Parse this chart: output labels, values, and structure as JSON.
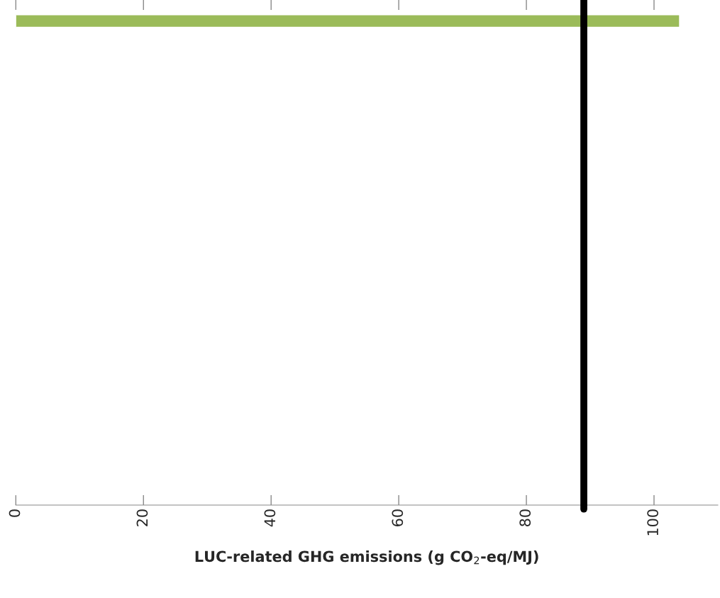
{
  "chart_data": {
    "type": "bar",
    "orientation": "horizontal",
    "xlabel": "LUC-related GHG emissions (g CO$_{2}$-eq/MJ)",
    "categories": [
      null,
      null,
      null,
      null,
      null,
      null,
      null,
      null,
      null,
      null,
      null,
      null
    ],
    "series": [
      {
        "color": "#9bbb59",
        "values": [
          104,
          null,
          null,
          null,
          null,
          null,
          null,
          null,
          null,
          null,
          null,
          null
        ]
      }
    ],
    "xlim": [
      0,
      110
    ],
    "xticks": [
      0,
      20,
      40,
      60,
      80,
      100
    ],
    "ref_lines": [
      {
        "axis": "x",
        "value": 89,
        "color": "#000000"
      }
    ],
    "tick_labels": "x",
    "grid": false,
    "legend": false
  }
}
